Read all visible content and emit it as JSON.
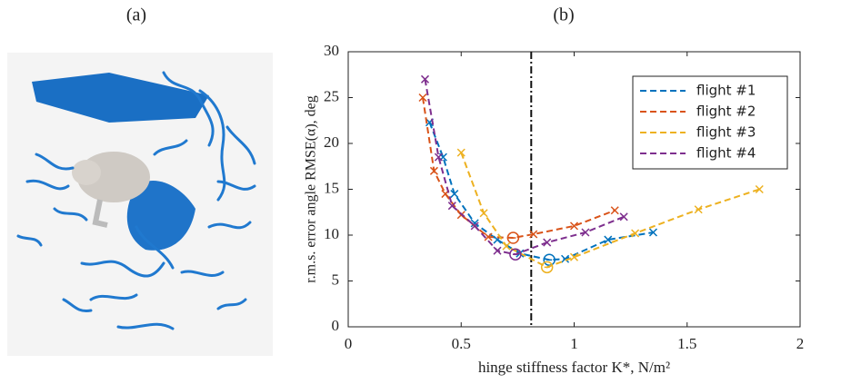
{
  "panel_labels": [
    "(a)",
    "(b)"
  ],
  "chart_data": {
    "type": "line",
    "xlabel": "hinge stiffness factor K*, N/m²",
    "ylabel": "r.m.s. error angle RMSE(α), deg",
    "xlim": [
      0,
      2
    ],
    "ylim": [
      0,
      30
    ],
    "xticks": [
      0,
      0.5,
      1,
      1.5,
      2
    ],
    "yticks": [
      0,
      5,
      10,
      15,
      20,
      25,
      30
    ],
    "reference_x": 0.81,
    "legend": "upper right",
    "series": [
      {
        "name": "flight #1",
        "color": "#0072BD",
        "circled": 6,
        "x": [
          0.36,
          0.42,
          0.47,
          0.56,
          0.66,
          0.76,
          0.89,
          0.96,
          1.15,
          1.35
        ],
        "values": [
          22.3,
          18.5,
          14.5,
          11.3,
          9.5,
          8.0,
          7.3,
          7.4,
          9.5,
          10.3
        ]
      },
      {
        "name": "flight #2",
        "color": "#D95319",
        "circled": 5,
        "x": [
          0.33,
          0.38,
          0.43,
          0.5,
          0.62,
          0.73,
          0.82,
          1.0,
          1.18
        ],
        "values": [
          25,
          17,
          14.5,
          12.2,
          9.8,
          9.7,
          10.1,
          11.0,
          12.7
        ]
      },
      {
        "name": "flight #3",
        "color": "#EDB120",
        "circled": 3,
        "x": [
          0.5,
          0.6,
          0.7,
          0.88,
          1.0,
          1.27,
          1.55,
          1.82
        ],
        "values": [
          19,
          12.4,
          8.8,
          6.5,
          7.6,
          10.2,
          12.8,
          15.0
        ]
      },
      {
        "name": "flight #4",
        "color": "#7E2F8E",
        "circled": 5,
        "x": [
          0.34,
          0.4,
          0.46,
          0.56,
          0.66,
          0.74,
          0.88,
          1.05,
          1.22
        ],
        "values": [
          27,
          18.5,
          13.2,
          11.0,
          8.3,
          7.9,
          9.2,
          10.3,
          12.0
        ]
      }
    ]
  }
}
